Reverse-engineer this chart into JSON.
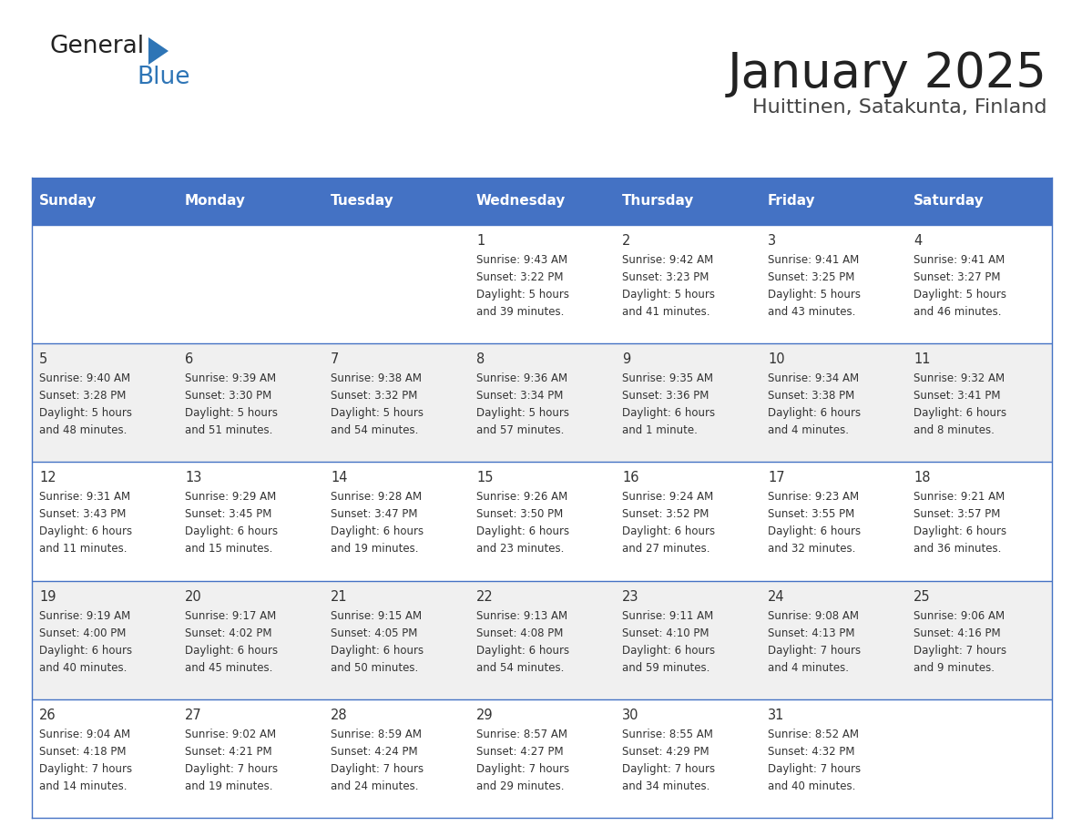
{
  "title": "January 2025",
  "subtitle": "Huittinen, Satakunta, Finland",
  "days_of_week": [
    "Sunday",
    "Monday",
    "Tuesday",
    "Wednesday",
    "Thursday",
    "Friday",
    "Saturday"
  ],
  "header_bg": "#4472C4",
  "header_text_color": "#FFFFFF",
  "cell_bg_even": "#FFFFFF",
  "cell_bg_odd": "#F0F0F0",
  "cell_border_color": "#4472C4",
  "day_number_color": "#333333",
  "content_text_color": "#333333",
  "title_color": "#222222",
  "subtitle_color": "#444444",
  "logo_black": "#222222",
  "logo_blue": "#2E75B6",
  "weeks": [
    {
      "days": [
        {
          "date": "",
          "sunrise": "",
          "sunset": "",
          "daylight": ""
        },
        {
          "date": "",
          "sunrise": "",
          "sunset": "",
          "daylight": ""
        },
        {
          "date": "",
          "sunrise": "",
          "sunset": "",
          "daylight": ""
        },
        {
          "date": "1",
          "sunrise": "9:43 AM",
          "sunset": "3:22 PM",
          "daylight": "5 hours\nand 39 minutes."
        },
        {
          "date": "2",
          "sunrise": "9:42 AM",
          "sunset": "3:23 PM",
          "daylight": "5 hours\nand 41 minutes."
        },
        {
          "date": "3",
          "sunrise": "9:41 AM",
          "sunset": "3:25 PM",
          "daylight": "5 hours\nand 43 minutes."
        },
        {
          "date": "4",
          "sunrise": "9:41 AM",
          "sunset": "3:27 PM",
          "daylight": "5 hours\nand 46 minutes."
        }
      ]
    },
    {
      "days": [
        {
          "date": "5",
          "sunrise": "9:40 AM",
          "sunset": "3:28 PM",
          "daylight": "5 hours\nand 48 minutes."
        },
        {
          "date": "6",
          "sunrise": "9:39 AM",
          "sunset": "3:30 PM",
          "daylight": "5 hours\nand 51 minutes."
        },
        {
          "date": "7",
          "sunrise": "9:38 AM",
          "sunset": "3:32 PM",
          "daylight": "5 hours\nand 54 minutes."
        },
        {
          "date": "8",
          "sunrise": "9:36 AM",
          "sunset": "3:34 PM",
          "daylight": "5 hours\nand 57 minutes."
        },
        {
          "date": "9",
          "sunrise": "9:35 AM",
          "sunset": "3:36 PM",
          "daylight": "6 hours\nand 1 minute."
        },
        {
          "date": "10",
          "sunrise": "9:34 AM",
          "sunset": "3:38 PM",
          "daylight": "6 hours\nand 4 minutes."
        },
        {
          "date": "11",
          "sunrise": "9:32 AM",
          "sunset": "3:41 PM",
          "daylight": "6 hours\nand 8 minutes."
        }
      ]
    },
    {
      "days": [
        {
          "date": "12",
          "sunrise": "9:31 AM",
          "sunset": "3:43 PM",
          "daylight": "6 hours\nand 11 minutes."
        },
        {
          "date": "13",
          "sunrise": "9:29 AM",
          "sunset": "3:45 PM",
          "daylight": "6 hours\nand 15 minutes."
        },
        {
          "date": "14",
          "sunrise": "9:28 AM",
          "sunset": "3:47 PM",
          "daylight": "6 hours\nand 19 minutes."
        },
        {
          "date": "15",
          "sunrise": "9:26 AM",
          "sunset": "3:50 PM",
          "daylight": "6 hours\nand 23 minutes."
        },
        {
          "date": "16",
          "sunrise": "9:24 AM",
          "sunset": "3:52 PM",
          "daylight": "6 hours\nand 27 minutes."
        },
        {
          "date": "17",
          "sunrise": "9:23 AM",
          "sunset": "3:55 PM",
          "daylight": "6 hours\nand 32 minutes."
        },
        {
          "date": "18",
          "sunrise": "9:21 AM",
          "sunset": "3:57 PM",
          "daylight": "6 hours\nand 36 minutes."
        }
      ]
    },
    {
      "days": [
        {
          "date": "19",
          "sunrise": "9:19 AM",
          "sunset": "4:00 PM",
          "daylight": "6 hours\nand 40 minutes."
        },
        {
          "date": "20",
          "sunrise": "9:17 AM",
          "sunset": "4:02 PM",
          "daylight": "6 hours\nand 45 minutes."
        },
        {
          "date": "21",
          "sunrise": "9:15 AM",
          "sunset": "4:05 PM",
          "daylight": "6 hours\nand 50 minutes."
        },
        {
          "date": "22",
          "sunrise": "9:13 AM",
          "sunset": "4:08 PM",
          "daylight": "6 hours\nand 54 minutes."
        },
        {
          "date": "23",
          "sunrise": "9:11 AM",
          "sunset": "4:10 PM",
          "daylight": "6 hours\nand 59 minutes."
        },
        {
          "date": "24",
          "sunrise": "9:08 AM",
          "sunset": "4:13 PM",
          "daylight": "7 hours\nand 4 minutes."
        },
        {
          "date": "25",
          "sunrise": "9:06 AM",
          "sunset": "4:16 PM",
          "daylight": "7 hours\nand 9 minutes."
        }
      ]
    },
    {
      "days": [
        {
          "date": "26",
          "sunrise": "9:04 AM",
          "sunset": "4:18 PM",
          "daylight": "7 hours\nand 14 minutes."
        },
        {
          "date": "27",
          "sunrise": "9:02 AM",
          "sunset": "4:21 PM",
          "daylight": "7 hours\nand 19 minutes."
        },
        {
          "date": "28",
          "sunrise": "8:59 AM",
          "sunset": "4:24 PM",
          "daylight": "7 hours\nand 24 minutes."
        },
        {
          "date": "29",
          "sunrise": "8:57 AM",
          "sunset": "4:27 PM",
          "daylight": "7 hours\nand 29 minutes."
        },
        {
          "date": "30",
          "sunrise": "8:55 AM",
          "sunset": "4:29 PM",
          "daylight": "7 hours\nand 34 minutes."
        },
        {
          "date": "31",
          "sunrise": "8:52 AM",
          "sunset": "4:32 PM",
          "daylight": "7 hours\nand 40 minutes."
        },
        {
          "date": "",
          "sunrise": "",
          "sunset": "",
          "daylight": ""
        }
      ]
    }
  ]
}
